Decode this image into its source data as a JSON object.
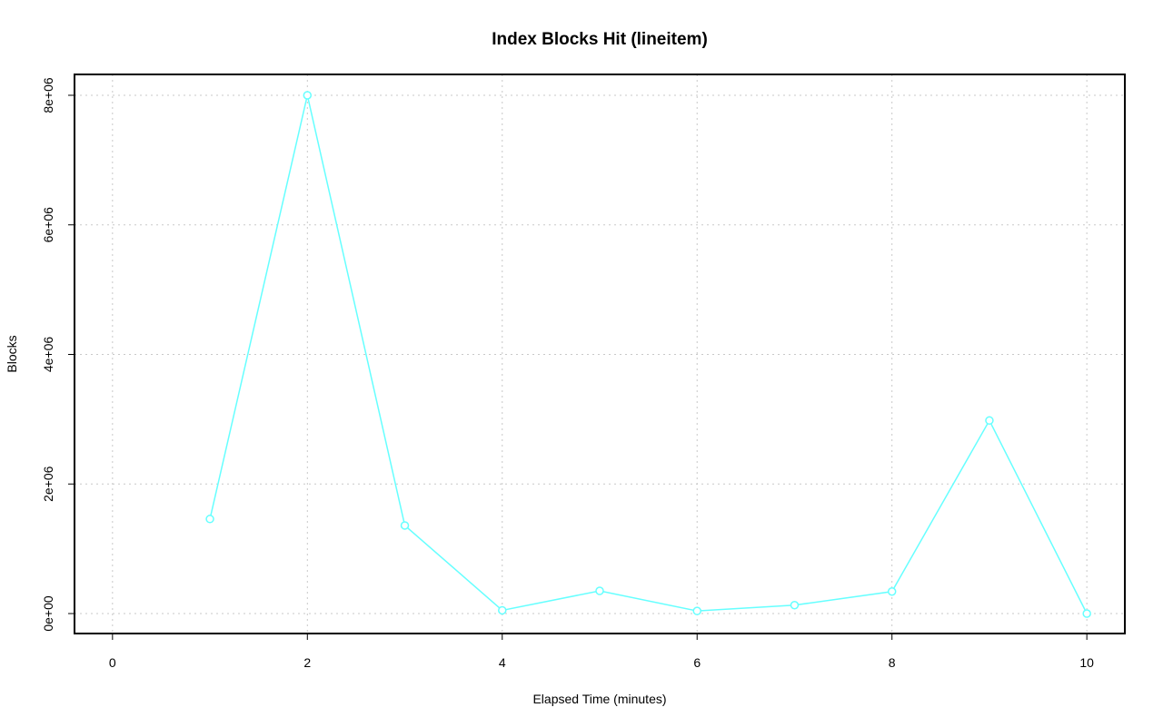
{
  "chart_data": {
    "type": "line",
    "title": "Index Blocks Hit (lineitem)",
    "x_label": "Elapsed Time (minutes)",
    "y_label": "Blocks",
    "x": [
      1,
      2,
      3,
      4,
      5,
      6,
      7,
      8,
      9,
      10
    ],
    "series": [
      {
        "name": "lineitem",
        "color": "#66ffff",
        "values": [
          1460000,
          8000000,
          1360000,
          50000,
          350000,
          40000,
          130000,
          340000,
          2980000,
          0
        ]
      }
    ],
    "xlim": [
      -0.39,
      10.39
    ],
    "xticks": [
      0,
      2,
      4,
      6,
      8,
      10
    ],
    "ylim": [
      -308000,
      8322000
    ],
    "yticks": [
      {
        "value": 0,
        "label": "0e+00"
      },
      {
        "value": 2000000,
        "label": "2e+06"
      },
      {
        "value": 4000000,
        "label": "4e+06"
      },
      {
        "value": 6000000,
        "label": "6e+06"
      },
      {
        "value": 8000000,
        "label": "8e+06"
      }
    ],
    "grid": true
  }
}
